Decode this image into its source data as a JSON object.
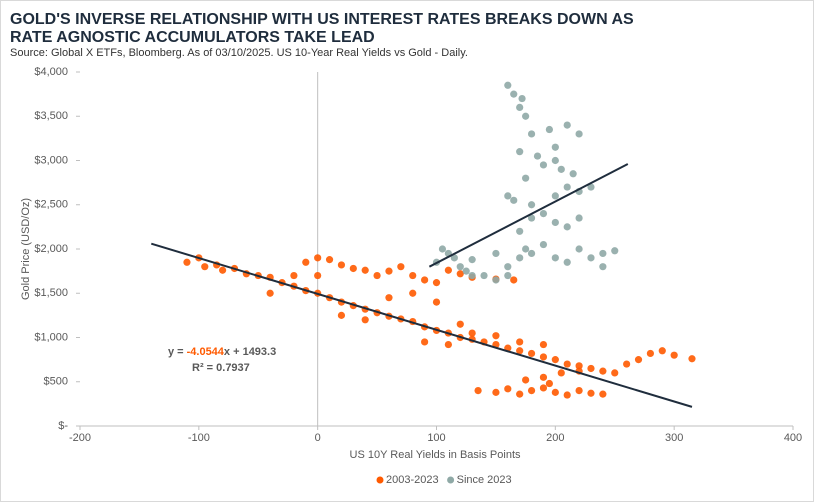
{
  "chart_data": {
    "type": "scatter",
    "title": [
      "GOLD'S INVERSE RELATIONSHIP WITH US INTEREST RATES BREAKS DOWN AS",
      "RATE AGNOSTIC ACCUMULATORS TAKE LEAD"
    ],
    "subtitle": "Source: Global X ETFs, Bloomberg. As of 03/10/2025. US 10-Year Real Yields vs Gold - Daily.",
    "x_label": "US 10Y Real Yields in Basis Points",
    "y_label": "Gold Price (USD/Oz)",
    "xlim": [
      -200,
      400
    ],
    "xticks": [
      -200,
      -100,
      0,
      100,
      200,
      300,
      400
    ],
    "ylim": [
      0,
      4000
    ],
    "yticks": [
      {
        "value": 0,
        "label": "$-"
      },
      {
        "value": 500,
        "label": "$500"
      },
      {
        "value": 1000,
        "label": "$1,000"
      },
      {
        "value": 1500,
        "label": "$1,500"
      },
      {
        "value": 2000,
        "label": "$2,000"
      },
      {
        "value": 2500,
        "label": "$2,500"
      },
      {
        "value": 3000,
        "label": "$3,000"
      },
      {
        "value": 3500,
        "label": "$3,500"
      },
      {
        "value": 4000,
        "label": "$4,000"
      }
    ],
    "annotation": {
      "parts": [
        "y =",
        "-4.0544",
        "x + 1493.3"
      ],
      "r2": "R² = 0.7937"
    },
    "trendlines": [
      {
        "x": [
          -140,
          315
        ],
        "values": [
          2060,
          216
        ]
      },
      {
        "x": [
          94,
          261
        ],
        "values": [
          1800,
          2960
        ]
      }
    ],
    "series": [
      {
        "name": "2003-2023",
        "color": "#ff5a00",
        "x": [
          -110,
          -100,
          -95,
          -85,
          -80,
          -70,
          -60,
          -50,
          -40,
          -30,
          -20,
          -10,
          0,
          10,
          20,
          30,
          40,
          50,
          60,
          70,
          80,
          90,
          100,
          110,
          120,
          130,
          140,
          150,
          160,
          170,
          180,
          190,
          200,
          210,
          220,
          230,
          240,
          250,
          260,
          270,
          280,
          290,
          300,
          315,
          0,
          -10,
          10,
          20,
          30,
          40,
          50,
          60,
          70,
          80,
          90,
          100,
          110,
          120,
          130,
          150,
          165,
          20,
          40,
          60,
          80,
          100,
          120,
          -20,
          -40,
          0,
          135,
          150,
          160,
          170,
          180,
          190,
          200,
          210,
          220,
          230,
          240,
          175,
          190,
          205,
          220,
          195,
          130,
          150,
          170,
          190,
          110,
          90
        ],
        "values": [
          1850,
          1900,
          1800,
          1820,
          1760,
          1780,
          1720,
          1700,
          1680,
          1620,
          1580,
          1530,
          1500,
          1450,
          1400,
          1360,
          1320,
          1280,
          1240,
          1210,
          1180,
          1120,
          1080,
          1050,
          1000,
          980,
          950,
          920,
          880,
          850,
          820,
          780,
          750,
          700,
          680,
          650,
          620,
          600,
          700,
          750,
          820,
          850,
          800,
          760,
          1900,
          1850,
          1880,
          1820,
          1780,
          1760,
          1700,
          1750,
          1800,
          1700,
          1650,
          1620,
          1760,
          1720,
          1680,
          1660,
          1650,
          1250,
          1200,
          1450,
          1500,
          1400,
          1150,
          1700,
          1500,
          1700,
          400,
          380,
          420,
          360,
          400,
          430,
          380,
          350,
          400,
          370,
          360,
          520,
          550,
          600,
          620,
          480,
          1050,
          1020,
          950,
          920,
          920,
          950
        ]
      },
      {
        "name": "Since 2023",
        "color": "#8fa9a6",
        "x": [
          100,
          105,
          110,
          115,
          120,
          125,
          130,
          140,
          150,
          160,
          170,
          175,
          180,
          190,
          200,
          210,
          220,
          230,
          240,
          250,
          240,
          170,
          180,
          190,
          200,
          210,
          220,
          160,
          165,
          180,
          200,
          210,
          220,
          175,
          190,
          205,
          215,
          170,
          185,
          200,
          180,
          195,
          210,
          220,
          175,
          170,
          165,
          160,
          172,
          230,
          200,
          130,
          150,
          160
        ],
        "values": [
          1850,
          2000,
          1950,
          1900,
          1800,
          1750,
          1880,
          1700,
          1650,
          1800,
          1900,
          2000,
          1950,
          2050,
          1900,
          1850,
          2000,
          1900,
          1950,
          1980,
          1800,
          2200,
          2350,
          2400,
          2300,
          2250,
          2350,
          2600,
          2550,
          2500,
          2600,
          2700,
          2650,
          2800,
          2950,
          2900,
          2850,
          3100,
          3050,
          3150,
          3300,
          3350,
          3400,
          3300,
          3500,
          3600,
          3750,
          3850,
          3700,
          2700,
          3000,
          1700,
          1950,
          1700
        ]
      }
    ]
  }
}
